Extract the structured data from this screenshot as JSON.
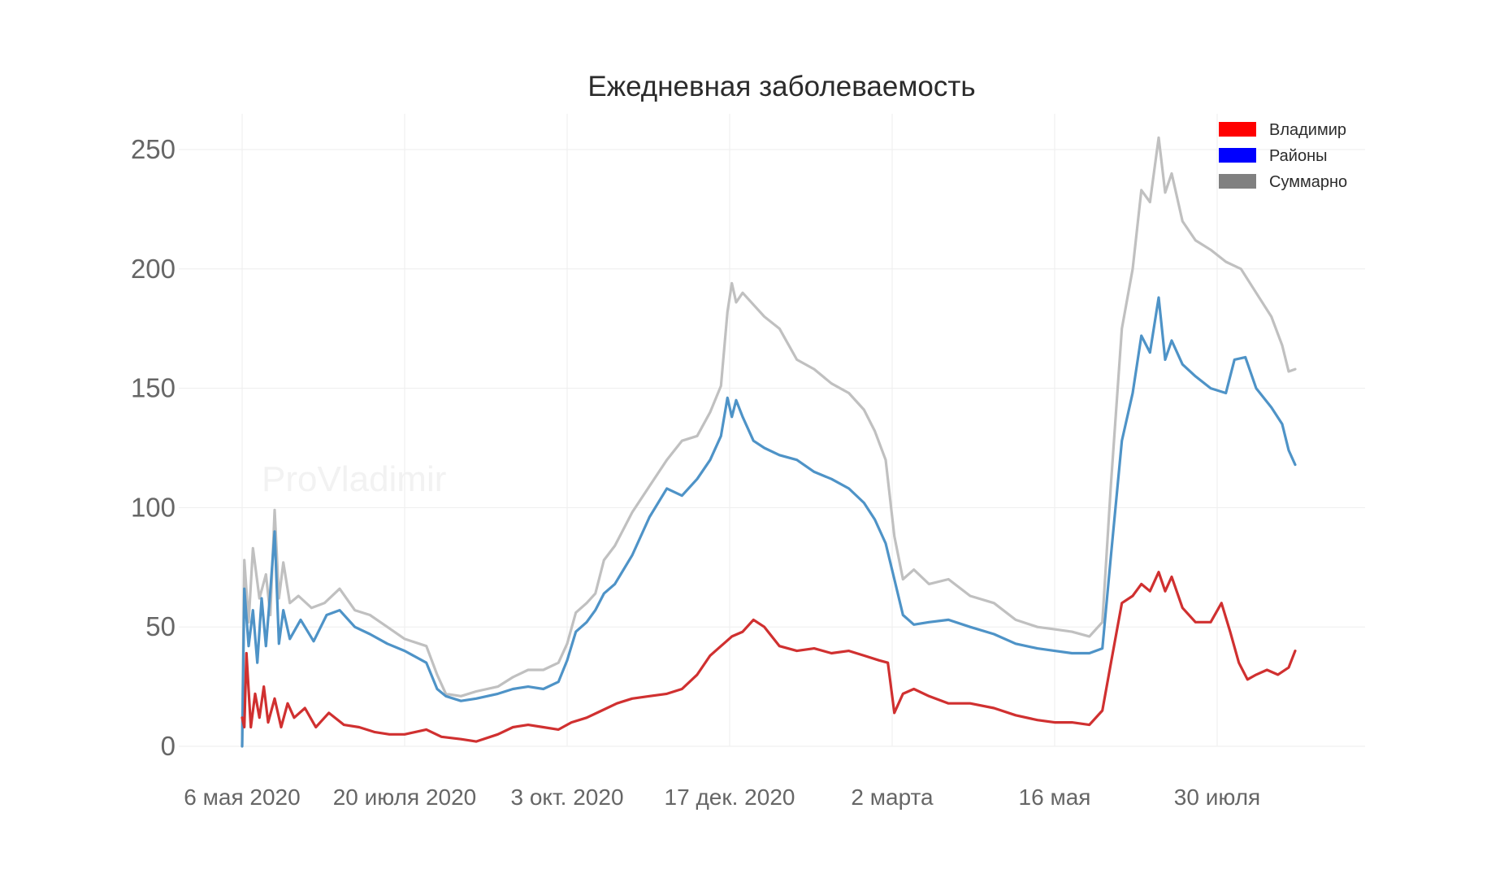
{
  "chart_data": {
    "type": "line",
    "title": "Ежедневная заболеваемость",
    "watermark": "ProVladimir",
    "xlabel": "",
    "ylabel": "",
    "ylim": [
      0,
      260
    ],
    "xlim": [
      "2020-05-06",
      "2021-09-04"
    ],
    "grid": true,
    "legend_position": "top-right",
    "y_ticks": [
      0,
      50,
      100,
      150,
      200,
      250
    ],
    "x_ticks": [
      {
        "date": "2020-05-06",
        "label": "6 мая 2020"
      },
      {
        "date": "2020-07-20",
        "label": "20 июля 2020"
      },
      {
        "date": "2020-10-03",
        "label": "3 окт. 2020"
      },
      {
        "date": "2020-12-17",
        "label": "17 дек. 2020"
      },
      {
        "date": "2021-03-02",
        "label": "2 марта"
      },
      {
        "date": "2021-05-16",
        "label": "16 мая"
      },
      {
        "date": "2021-07-30",
        "label": "30 июля"
      }
    ],
    "series": [
      {
        "name": "Суммарно",
        "color": "#c0c0c0",
        "legend_color": "#808080",
        "points": [
          [
            "2020-05-06",
            0
          ],
          [
            "2020-05-07",
            78
          ],
          [
            "2020-05-09",
            52
          ],
          [
            "2020-05-11",
            83
          ],
          [
            "2020-05-14",
            62
          ],
          [
            "2020-05-17",
            72
          ],
          [
            "2020-05-19",
            55
          ],
          [
            "2020-05-21",
            99
          ],
          [
            "2020-05-23",
            62
          ],
          [
            "2020-05-25",
            77
          ],
          [
            "2020-05-28",
            60
          ],
          [
            "2020-06-01",
            63
          ],
          [
            "2020-06-07",
            58
          ],
          [
            "2020-06-13",
            60
          ],
          [
            "2020-06-20",
            66
          ],
          [
            "2020-06-27",
            57
          ],
          [
            "2020-07-04",
            55
          ],
          [
            "2020-07-12",
            50
          ],
          [
            "2020-07-20",
            45
          ],
          [
            "2020-07-30",
            42
          ],
          [
            "2020-08-04",
            30
          ],
          [
            "2020-08-08",
            22
          ],
          [
            "2020-08-15",
            21
          ],
          [
            "2020-08-22",
            23
          ],
          [
            "2020-09-01",
            25
          ],
          [
            "2020-09-08",
            29
          ],
          [
            "2020-09-15",
            32
          ],
          [
            "2020-09-22",
            32
          ],
          [
            "2020-09-29",
            35
          ],
          [
            "2020-10-03",
            43
          ],
          [
            "2020-10-07",
            56
          ],
          [
            "2020-10-12",
            60
          ],
          [
            "2020-10-16",
            64
          ],
          [
            "2020-10-20",
            78
          ],
          [
            "2020-10-25",
            84
          ],
          [
            "2020-11-02",
            98
          ],
          [
            "2020-11-10",
            109
          ],
          [
            "2020-11-18",
            120
          ],
          [
            "2020-11-25",
            128
          ],
          [
            "2020-12-02",
            130
          ],
          [
            "2020-12-08",
            140
          ],
          [
            "2020-12-13",
            151
          ],
          [
            "2020-12-16",
            182
          ],
          [
            "2020-12-18",
            194
          ],
          [
            "2020-12-20",
            186
          ],
          [
            "2020-12-23",
            190
          ],
          [
            "2020-12-28",
            185
          ],
          [
            "2021-01-02",
            180
          ],
          [
            "2021-01-09",
            175
          ],
          [
            "2021-01-17",
            162
          ],
          [
            "2021-01-25",
            158
          ],
          [
            "2021-02-02",
            152
          ],
          [
            "2021-02-10",
            148
          ],
          [
            "2021-02-17",
            141
          ],
          [
            "2021-02-22",
            132
          ],
          [
            "2021-02-27",
            120
          ],
          [
            "2021-03-03",
            88
          ],
          [
            "2021-03-07",
            70
          ],
          [
            "2021-03-12",
            74
          ],
          [
            "2021-03-19",
            68
          ],
          [
            "2021-03-28",
            70
          ],
          [
            "2021-04-07",
            63
          ],
          [
            "2021-04-18",
            60
          ],
          [
            "2021-04-28",
            53
          ],
          [
            "2021-05-08",
            50
          ],
          [
            "2021-05-16",
            49
          ],
          [
            "2021-05-24",
            48
          ],
          [
            "2021-06-01",
            46
          ],
          [
            "2021-06-07",
            52
          ],
          [
            "2021-06-11",
            110
          ],
          [
            "2021-06-16",
            175
          ],
          [
            "2021-06-21",
            200
          ],
          [
            "2021-06-25",
            233
          ],
          [
            "2021-06-29",
            228
          ],
          [
            "2021-07-03",
            255
          ],
          [
            "2021-07-06",
            232
          ],
          [
            "2021-07-09",
            240
          ],
          [
            "2021-07-14",
            220
          ],
          [
            "2021-07-20",
            212
          ],
          [
            "2021-07-27",
            208
          ],
          [
            "2021-08-03",
            203
          ],
          [
            "2021-08-10",
            200
          ],
          [
            "2021-08-17",
            190
          ],
          [
            "2021-08-24",
            180
          ],
          [
            "2021-08-29",
            168
          ],
          [
            "2021-09-01",
            157
          ],
          [
            "2021-09-04",
            158
          ]
        ]
      },
      {
        "name": "Районы",
        "color": "#4e93c7",
        "legend_color": "#0000ff",
        "points": [
          [
            "2020-05-06",
            0
          ],
          [
            "2020-05-07",
            66
          ],
          [
            "2020-05-09",
            42
          ],
          [
            "2020-05-11",
            57
          ],
          [
            "2020-05-13",
            35
          ],
          [
            "2020-05-15",
            62
          ],
          [
            "2020-05-17",
            42
          ],
          [
            "2020-05-19",
            65
          ],
          [
            "2020-05-21",
            90
          ],
          [
            "2020-05-23",
            43
          ],
          [
            "2020-05-25",
            57
          ],
          [
            "2020-05-28",
            45
          ],
          [
            "2020-06-02",
            53
          ],
          [
            "2020-06-08",
            44
          ],
          [
            "2020-06-14",
            55
          ],
          [
            "2020-06-20",
            57
          ],
          [
            "2020-06-27",
            50
          ],
          [
            "2020-07-04",
            47
          ],
          [
            "2020-07-12",
            43
          ],
          [
            "2020-07-20",
            40
          ],
          [
            "2020-07-30",
            35
          ],
          [
            "2020-08-04",
            24
          ],
          [
            "2020-08-08",
            21
          ],
          [
            "2020-08-15",
            19
          ],
          [
            "2020-08-22",
            20
          ],
          [
            "2020-09-01",
            22
          ],
          [
            "2020-09-08",
            24
          ],
          [
            "2020-09-15",
            25
          ],
          [
            "2020-09-22",
            24
          ],
          [
            "2020-09-29",
            27
          ],
          [
            "2020-10-03",
            36
          ],
          [
            "2020-10-07",
            48
          ],
          [
            "2020-10-12",
            52
          ],
          [
            "2020-10-16",
            57
          ],
          [
            "2020-10-20",
            64
          ],
          [
            "2020-10-25",
            68
          ],
          [
            "2020-11-02",
            80
          ],
          [
            "2020-11-10",
            96
          ],
          [
            "2020-11-18",
            108
          ],
          [
            "2020-11-25",
            105
          ],
          [
            "2020-12-02",
            112
          ],
          [
            "2020-12-08",
            120
          ],
          [
            "2020-12-13",
            130
          ],
          [
            "2020-12-16",
            146
          ],
          [
            "2020-12-18",
            138
          ],
          [
            "2020-12-20",
            145
          ],
          [
            "2020-12-23",
            138
          ],
          [
            "2020-12-28",
            128
          ],
          [
            "2021-01-02",
            125
          ],
          [
            "2021-01-09",
            122
          ],
          [
            "2021-01-17",
            120
          ],
          [
            "2021-01-25",
            115
          ],
          [
            "2021-02-02",
            112
          ],
          [
            "2021-02-10",
            108
          ],
          [
            "2021-02-17",
            102
          ],
          [
            "2021-02-22",
            95
          ],
          [
            "2021-02-27",
            85
          ],
          [
            "2021-03-03",
            70
          ],
          [
            "2021-03-07",
            55
          ],
          [
            "2021-03-12",
            51
          ],
          [
            "2021-03-19",
            52
          ],
          [
            "2021-03-28",
            53
          ],
          [
            "2021-04-07",
            50
          ],
          [
            "2021-04-18",
            47
          ],
          [
            "2021-04-28",
            43
          ],
          [
            "2021-05-08",
            41
          ],
          [
            "2021-05-16",
            40
          ],
          [
            "2021-05-24",
            39
          ],
          [
            "2021-06-01",
            39
          ],
          [
            "2021-06-07",
            41
          ],
          [
            "2021-06-11",
            80
          ],
          [
            "2021-06-16",
            128
          ],
          [
            "2021-06-21",
            148
          ],
          [
            "2021-06-25",
            172
          ],
          [
            "2021-06-29",
            165
          ],
          [
            "2021-07-03",
            188
          ],
          [
            "2021-07-06",
            162
          ],
          [
            "2021-07-09",
            170
          ],
          [
            "2021-07-14",
            160
          ],
          [
            "2021-07-20",
            155
          ],
          [
            "2021-07-27",
            150
          ],
          [
            "2021-08-03",
            148
          ],
          [
            "2021-08-07",
            162
          ],
          [
            "2021-08-12",
            163
          ],
          [
            "2021-08-17",
            150
          ],
          [
            "2021-08-24",
            142
          ],
          [
            "2021-08-29",
            135
          ],
          [
            "2021-09-01",
            124
          ],
          [
            "2021-09-04",
            118
          ]
        ]
      },
      {
        "name": "Владимир",
        "color": "#d03030",
        "legend_color": "#ff0000",
        "points": [
          [
            "2020-05-06",
            12
          ],
          [
            "2020-05-07",
            8
          ],
          [
            "2020-05-08",
            39
          ],
          [
            "2020-05-10",
            8
          ],
          [
            "2020-05-12",
            22
          ],
          [
            "2020-05-14",
            12
          ],
          [
            "2020-05-16",
            25
          ],
          [
            "2020-05-18",
            10
          ],
          [
            "2020-05-21",
            20
          ],
          [
            "2020-05-24",
            8
          ],
          [
            "2020-05-27",
            18
          ],
          [
            "2020-05-30",
            12
          ],
          [
            "2020-06-04",
            16
          ],
          [
            "2020-06-09",
            8
          ],
          [
            "2020-06-15",
            14
          ],
          [
            "2020-06-22",
            9
          ],
          [
            "2020-06-29",
            8
          ],
          [
            "2020-07-06",
            6
          ],
          [
            "2020-07-13",
            5
          ],
          [
            "2020-07-20",
            5
          ],
          [
            "2020-07-30",
            7
          ],
          [
            "2020-08-06",
            4
          ],
          [
            "2020-08-15",
            3
          ],
          [
            "2020-08-22",
            2
          ],
          [
            "2020-09-01",
            5
          ],
          [
            "2020-09-08",
            8
          ],
          [
            "2020-09-15",
            9
          ],
          [
            "2020-09-22",
            8
          ],
          [
            "2020-09-29",
            7
          ],
          [
            "2020-10-05",
            10
          ],
          [
            "2020-10-12",
            12
          ],
          [
            "2020-10-19",
            15
          ],
          [
            "2020-10-26",
            18
          ],
          [
            "2020-11-02",
            20
          ],
          [
            "2020-11-10",
            21
          ],
          [
            "2020-11-18",
            22
          ],
          [
            "2020-11-25",
            24
          ],
          [
            "2020-12-02",
            30
          ],
          [
            "2020-12-08",
            38
          ],
          [
            "2020-12-13",
            42
          ],
          [
            "2020-12-18",
            46
          ],
          [
            "2020-12-23",
            48
          ],
          [
            "2020-12-28",
            53
          ],
          [
            "2021-01-02",
            50
          ],
          [
            "2021-01-09",
            42
          ],
          [
            "2021-01-17",
            40
          ],
          [
            "2021-01-25",
            41
          ],
          [
            "2021-02-02",
            39
          ],
          [
            "2021-02-10",
            40
          ],
          [
            "2021-02-17",
            38
          ],
          [
            "2021-02-24",
            36
          ],
          [
            "2021-02-28",
            35
          ],
          [
            "2021-03-03",
            14
          ],
          [
            "2021-03-07",
            22
          ],
          [
            "2021-03-12",
            24
          ],
          [
            "2021-03-19",
            21
          ],
          [
            "2021-03-28",
            18
          ],
          [
            "2021-04-07",
            18
          ],
          [
            "2021-04-18",
            16
          ],
          [
            "2021-04-28",
            13
          ],
          [
            "2021-05-08",
            11
          ],
          [
            "2021-05-16",
            10
          ],
          [
            "2021-05-24",
            10
          ],
          [
            "2021-06-01",
            9
          ],
          [
            "2021-06-07",
            15
          ],
          [
            "2021-06-11",
            35
          ],
          [
            "2021-06-16",
            60
          ],
          [
            "2021-06-21",
            63
          ],
          [
            "2021-06-25",
            68
          ],
          [
            "2021-06-29",
            65
          ],
          [
            "2021-07-03",
            73
          ],
          [
            "2021-07-06",
            65
          ],
          [
            "2021-07-09",
            71
          ],
          [
            "2021-07-14",
            58
          ],
          [
            "2021-07-20",
            52
          ],
          [
            "2021-07-27",
            52
          ],
          [
            "2021-08-01",
            60
          ],
          [
            "2021-08-05",
            48
          ],
          [
            "2021-08-09",
            35
          ],
          [
            "2021-08-13",
            28
          ],
          [
            "2021-08-17",
            30
          ],
          [
            "2021-08-22",
            32
          ],
          [
            "2021-08-27",
            30
          ],
          [
            "2021-09-01",
            33
          ],
          [
            "2021-09-04",
            40
          ]
        ]
      }
    ],
    "legend_order": [
      "Владимир",
      "Районы",
      "Суммарно"
    ]
  }
}
